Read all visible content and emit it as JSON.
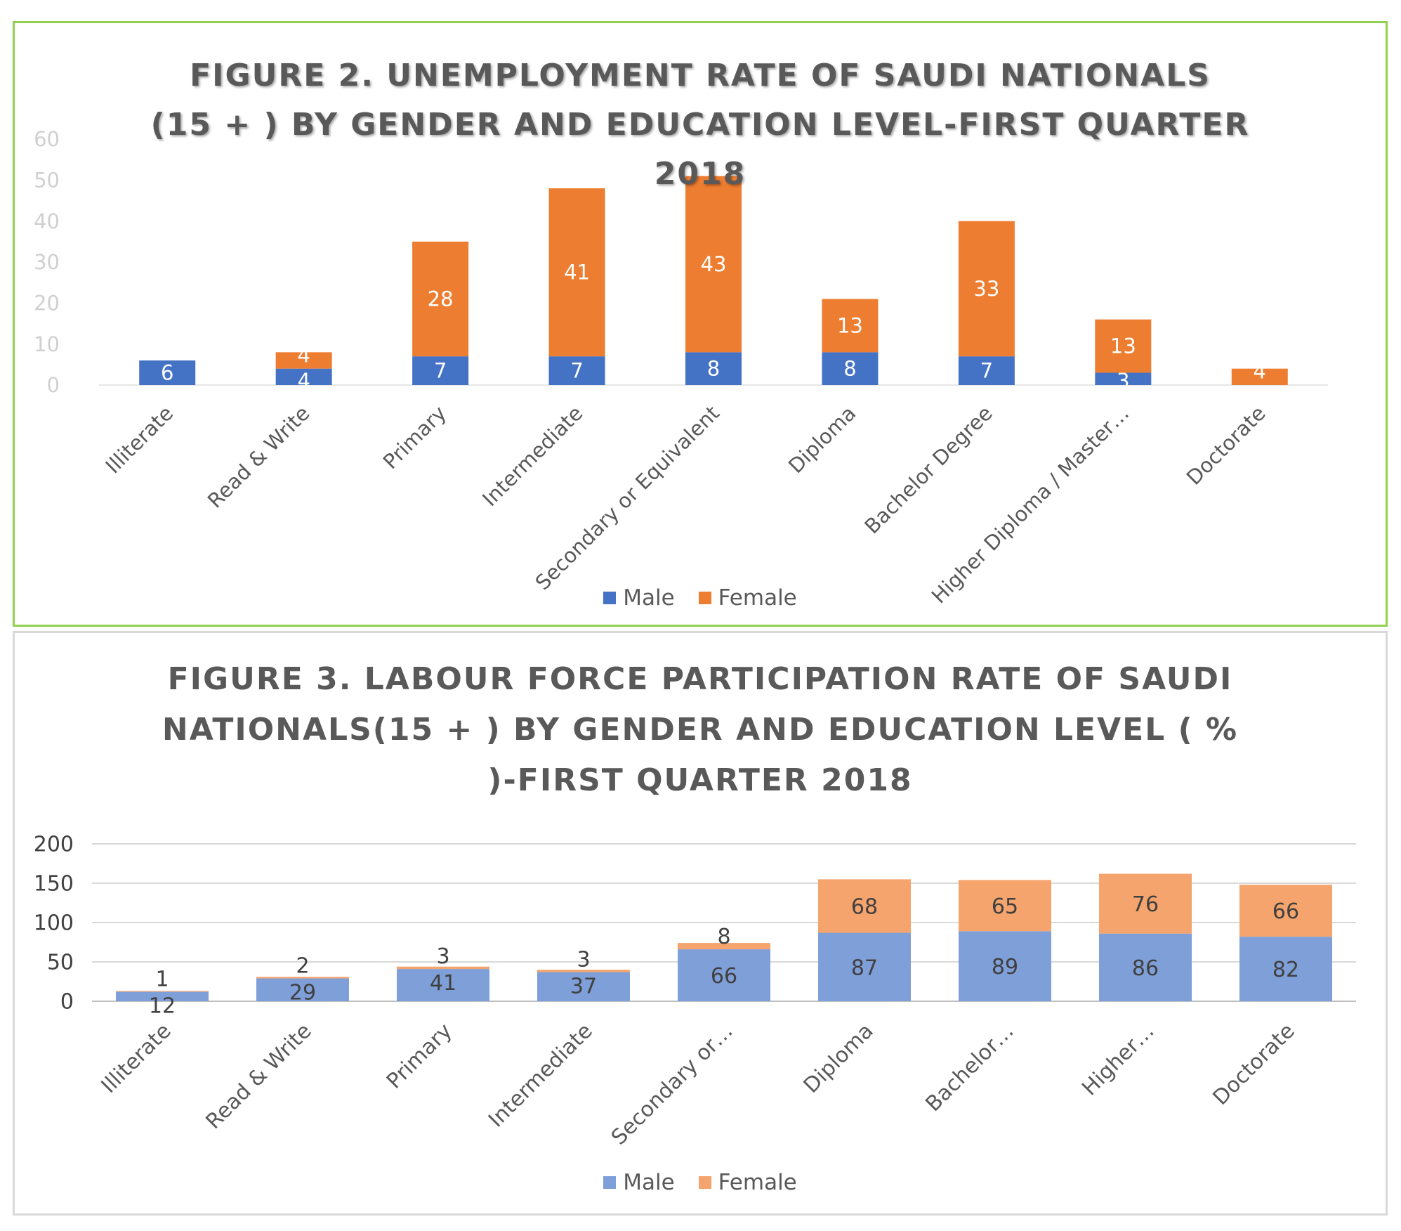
{
  "chart_data": [
    {
      "type": "bar",
      "stacked": true,
      "title": "FIGURE 2. UNEMPLOYMENT RATE OF SAUDI NATIONALS\n(15 + ) BY GENDER AND EDUCATION LEVEL-FIRST QUARTER\n2018",
      "categories": [
        "Illiterate",
        "Read & Write",
        "Primary",
        "Intermediate",
        "Secondary or Equivalent",
        "Diploma",
        "Bachelor Degree",
        "Higher Diploma / Master…",
        "Doctorate"
      ],
      "series": [
        {
          "name": "Male",
          "color": "#4472c4",
          "values": [
            6,
            4,
            7,
            7,
            8,
            8,
            7,
            3,
            0
          ],
          "labels": [
            "6",
            "4",
            "7",
            "7",
            "8",
            "8",
            "7",
            "3",
            ""
          ]
        },
        {
          "name": "Female",
          "color": "#ed7d31",
          "values": [
            0,
            4,
            28,
            41,
            43,
            13,
            33,
            13,
            4
          ],
          "labels": [
            "",
            "4",
            "28",
            "41",
            "43",
            "13",
            "33",
            "13",
            "4"
          ]
        }
      ],
      "yticks": [
        "0",
        "10",
        "20",
        "30",
        "40",
        "50",
        "60"
      ],
      "ylim": [
        0,
        60
      ],
      "grid": false,
      "legend": "bottom"
    },
    {
      "type": "bar",
      "stacked": true,
      "title": "FIGURE 3. LABOUR FORCE PARTICIPATION RATE OF SAUDI\nNATIONALS(15 + ) BY GENDER AND EDUCATION LEVEL ( %\n)-FIRST QUARTER 2018",
      "categories": [
        "Illiterate",
        "Read & Write",
        "Primary",
        "Intermediate",
        "Secondary or…",
        "Diploma",
        "Bachelor…",
        "Higher…",
        "Doctorate"
      ],
      "series": [
        {
          "name": "Male",
          "color": "#7f9fd9",
          "values": [
            12,
            29,
            41,
            37,
            66,
            87,
            89,
            86,
            82
          ],
          "labels": [
            "12",
            "29",
            "41",
            "37",
            "66",
            "87",
            "89",
            "86",
            "82"
          ]
        },
        {
          "name": "Female",
          "color": "#f4a46c",
          "values": [
            1,
            2,
            3,
            3,
            8,
            68,
            65,
            76,
            66
          ],
          "labels": [
            "1",
            "2",
            "3",
            "3",
            "8",
            "68",
            "65",
            "76",
            "66"
          ]
        }
      ],
      "yticks": [
        "0",
        "50",
        "100",
        "150",
        "200"
      ],
      "ylim": [
        0,
        200
      ],
      "grid": true,
      "legend": "bottom"
    }
  ]
}
